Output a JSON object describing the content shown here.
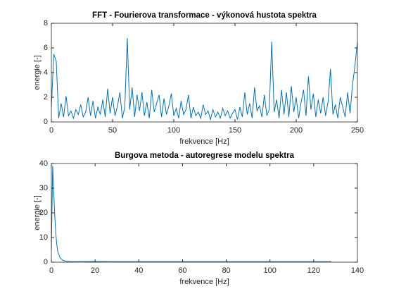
{
  "chart_data": [
    {
      "type": "line",
      "title": "FFT - Fourierova transformace - výkonová hustota spektra",
      "xlabel": "frekvence [Hz]",
      "ylabel": "energie [-]",
      "x": [
        0,
        2,
        4,
        6,
        8,
        10,
        12,
        14,
        16,
        18,
        20,
        22,
        24,
        26,
        28,
        30,
        32,
        34,
        36,
        38,
        40,
        42,
        44,
        46,
        48,
        50,
        52,
        54,
        56,
        58,
        60,
        62,
        64,
        66,
        68,
        70,
        72,
        74,
        76,
        78,
        80,
        82,
        84,
        86,
        88,
        90,
        92,
        94,
        96,
        98,
        100,
        102,
        104,
        106,
        108,
        110,
        112,
        114,
        116,
        118,
        120,
        122,
        124,
        126,
        128,
        130,
        132,
        134,
        136,
        138,
        140,
        142,
        144,
        146,
        148,
        150,
        152,
        154,
        156,
        158,
        160,
        162,
        164,
        166,
        168,
        170,
        172,
        174,
        176,
        178,
        180,
        182,
        184,
        186,
        188,
        190,
        192,
        194,
        196,
        198,
        200,
        202,
        204,
        206,
        208,
        210,
        212,
        214,
        216,
        218,
        220,
        222,
        224,
        226,
        228,
        230,
        232,
        234,
        236,
        238,
        240,
        242,
        244,
        246,
        248,
        250
      ],
      "series": [
        {
          "name": "FFT",
          "color": "#0072bd",
          "values": [
            1.2,
            5.5,
            4.9,
            0.3,
            1.5,
            0.4,
            2.1,
            0.5,
            0.9,
            0.3,
            1.0,
            0.6,
            1.4,
            0.4,
            0.8,
            2.0,
            0.5,
            1.7,
            0.3,
            1.2,
            0.6,
            1.8,
            0.4,
            2.7,
            0.7,
            2.0,
            0.5,
            1.3,
            2.4,
            0.3,
            1.2,
            6.8,
            1.0,
            2.8,
            0.4,
            2.2,
            0.9,
            2.4,
            0.5,
            1.6,
            0.3,
            2.6,
            0.8,
            1.5,
            2.2,
            0.4,
            1.9,
            0.6,
            1.3,
            2.3,
            0.5,
            1.1,
            0.3,
            1.7,
            0.6,
            1.0,
            2.2,
            0.3,
            1.2,
            0.5,
            0.8,
            0.3,
            1.4,
            0.6,
            0.9,
            0.2,
            1.0,
            0.4,
            0.8,
            0.3,
            1.1,
            0.5,
            0.9,
            0.3,
            0.7,
            1.0,
            0.2,
            1.2,
            0.4,
            2.4,
            0.6,
            1.5,
            0.3,
            2.8,
            0.9,
            1.3,
            0.4,
            2.2,
            0.5,
            1.0,
            6.5,
            0.8,
            1.8,
            0.3,
            2.6,
            0.6,
            2.4,
            0.4,
            2.9,
            0.8,
            2.0,
            0.3,
            1.6,
            2.6,
            0.5,
            3.7,
            1.0,
            2.3,
            0.4,
            1.8,
            0.7,
            2.0,
            0.5,
            1.6,
            4.3,
            0.6,
            1.4,
            0.3,
            2.0,
            1.2,
            0.4,
            2.4,
            0.7,
            3.0,
            4.6,
            6.5
          ]
        }
      ],
      "xlim": [
        0,
        250
      ],
      "xticks": [
        0,
        50,
        100,
        150,
        200,
        250
      ],
      "ylim": [
        0,
        8
      ],
      "yticks": [
        0,
        2,
        4,
        6,
        8
      ]
    },
    {
      "type": "line",
      "title": "Burgova metoda - autoregrese modelu spektra",
      "xlabel": "frekvence [Hz]",
      "ylabel": "energie [-]",
      "x": [
        0,
        0.6,
        1,
        1.5,
        2,
        2.5,
        3,
        4,
        5,
        6,
        8,
        10,
        20,
        30,
        40,
        50,
        60,
        70,
        80,
        90,
        100,
        110,
        120,
        128
      ],
      "series": [
        {
          "name": "Burg",
          "color": "#0072bd",
          "values": [
            5,
            39,
            30,
            20,
            12,
            7,
            4,
            1.8,
            0.9,
            0.5,
            0.3,
            0.2,
            0.3,
            0.2,
            0.2,
            0.2,
            0.2,
            0.2,
            0.2,
            0.2,
            0.2,
            0.2,
            0.2,
            0.2
          ]
        }
      ],
      "xlim": [
        0,
        140
      ],
      "xticks": [
        0,
        20,
        40,
        60,
        80,
        100,
        120,
        140
      ],
      "ylim": [
        0,
        40
      ],
      "yticks": [
        0,
        10,
        20,
        30,
        40
      ]
    }
  ]
}
